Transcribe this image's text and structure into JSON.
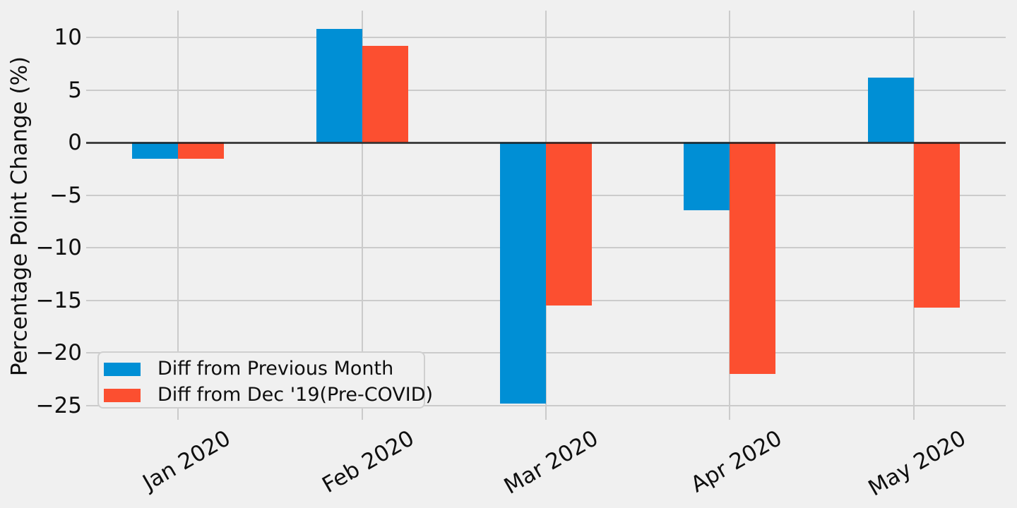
{
  "chart_data": {
    "type": "bar",
    "title": "",
    "xlabel": "",
    "ylabel": "Percentage Point Change (%)",
    "categories": [
      "Jan 2020",
      "Feb 2020",
      "Mar 2020",
      "Apr 2020",
      "May 2020"
    ],
    "series": [
      {
        "name": "Diff from Previous Month",
        "color": "#008fd5",
        "values": [
          -1.5,
          10.8,
          -24.8,
          -6.4,
          6.2
        ]
      },
      {
        "name": "Diff from Dec '19(Pre-COVID)",
        "color": "#fc4f30",
        "values": [
          -1.5,
          9.2,
          -15.5,
          -22.0,
          -15.7
        ]
      }
    ],
    "yticks": [
      10,
      5,
      0,
      -5,
      -10,
      -15,
      -20,
      -25
    ],
    "ylim": [
      -26.4,
      12.6
    ],
    "xlim": [
      -0.5,
      4.5
    ],
    "grid": true,
    "x_tick_rotation_deg": 30,
    "legend_position": "lower left",
    "colors": {
      "background": "#f0f0f0",
      "grid": "#cbcbcb",
      "zero_line": "#333333",
      "text": "#0f0f0f",
      "legend_border": "#cfcfcf"
    }
  }
}
